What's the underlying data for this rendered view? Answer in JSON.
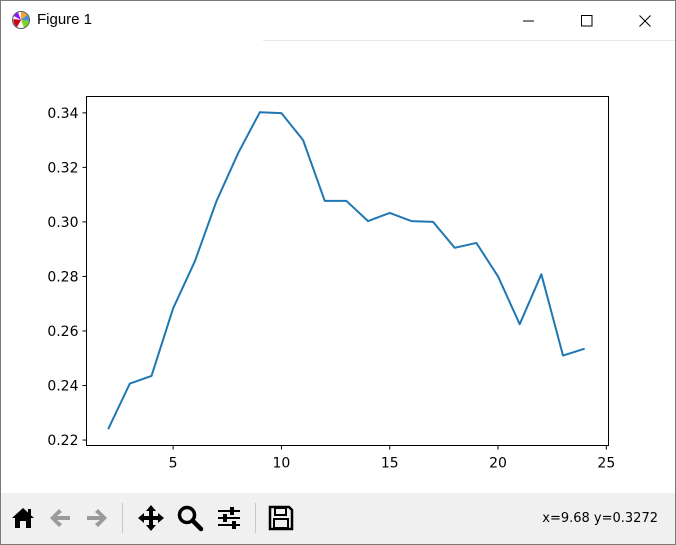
{
  "window": {
    "title": "Figure 1",
    "controls": [
      "minimize",
      "maximize",
      "close"
    ]
  },
  "toolbar": {
    "buttons": [
      {
        "name": "home",
        "icon": "home-icon"
      },
      {
        "name": "back",
        "icon": "arrow-left-icon"
      },
      {
        "name": "forward",
        "icon": "arrow-right-icon"
      },
      {
        "name": "pan",
        "icon": "move-icon"
      },
      {
        "name": "zoom",
        "icon": "magnifier-icon"
      },
      {
        "name": "configure-subplots",
        "icon": "sliders-icon"
      },
      {
        "name": "save",
        "icon": "floppy-disk-icon"
      }
    ],
    "coordinates": "x=9.68 y=0.3272"
  },
  "chart_data": {
    "type": "line",
    "title": "",
    "xlabel": "",
    "ylabel": "",
    "xlim": [
      1.0,
      25.1
    ],
    "ylim": [
      0.218,
      0.346
    ],
    "xticks": [
      5,
      10,
      15,
      20,
      25
    ],
    "yticks": [
      0.22,
      0.24,
      0.26,
      0.28,
      0.3,
      0.32,
      0.34
    ],
    "ytick_labels": [
      "0.22",
      "0.24",
      "0.26",
      "0.28",
      "0.30",
      "0.32",
      "0.34"
    ],
    "xtick_labels": [
      "5",
      "10",
      "15",
      "20",
      "25"
    ],
    "grid": false,
    "line_color": "#1f77b4",
    "x": [
      2,
      3,
      4,
      5,
      6,
      7,
      8,
      9,
      10,
      11,
      12,
      13,
      14,
      15,
      16,
      17,
      18,
      19,
      20,
      21,
      22,
      23,
      24
    ],
    "y": [
      0.224,
      0.2407,
      0.2435,
      0.2683,
      0.2855,
      0.3076,
      0.3252,
      0.3402,
      0.3399,
      0.33,
      0.3077,
      0.3077,
      0.3003,
      0.3033,
      0.3003,
      0.3,
      0.2905,
      0.2923,
      0.28,
      0.2625,
      0.2808,
      0.251,
      0.2535
    ]
  }
}
